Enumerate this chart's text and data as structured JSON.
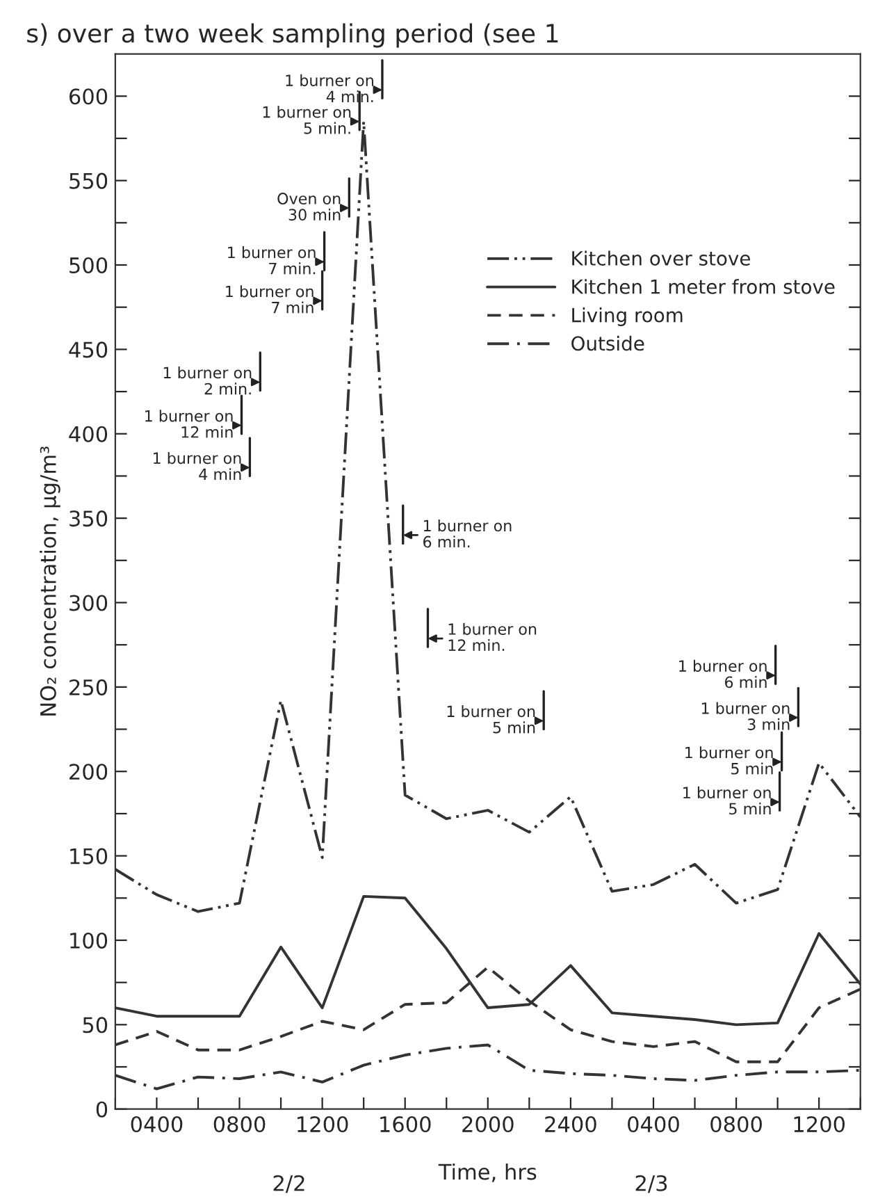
{
  "chart_data": {
    "type": "line",
    "title": "s) over a two week sampling period (see 1",
    "xlabel": "Time, hrs",
    "ylabel": "NO₂ concentration, μg/m³",
    "categories": [
      null,
      "0400",
      null,
      "0800",
      null,
      "1200",
      null,
      "1600",
      null,
      "2000",
      null,
      "2400",
      null,
      "0400",
      null,
      "0800",
      null,
      "1200",
      null
    ],
    "series": [
      {
        "name": "Kitchen over stove",
        "color": "#333333",
        "line_style": "dashdotdot",
        "values": [
          142,
          127,
          117,
          122,
          242,
          149,
          585,
          186,
          172,
          177,
          164,
          185,
          129,
          133,
          145,
          122,
          130,
          205,
          173
        ]
      },
      {
        "name": "Kitchen 1 meter from stove",
        "color": "#333333",
        "line_style": "solid",
        "values": [
          60,
          55,
          55,
          55,
          96,
          60,
          126,
          125,
          95,
          60,
          62,
          85,
          57,
          55,
          53,
          50,
          51,
          104,
          74
        ]
      },
      {
        "name": "Living room",
        "color": "#333333",
        "line_style": "dashed",
        "values": [
          38,
          46,
          35,
          35,
          43,
          52,
          47,
          62,
          63,
          84,
          64,
          47,
          40,
          37,
          40,
          28,
          28,
          60,
          71
        ]
      },
      {
        "name": "Outside",
        "color": "#333333",
        "line_style": "dashdot",
        "values": [
          20,
          12,
          19,
          18,
          22,
          16,
          26,
          32,
          36,
          38,
          23,
          21,
          20,
          18,
          17,
          20,
          22,
          22,
          23
        ]
      }
    ],
    "ylim": [
      0,
      625
    ],
    "yticks": [
      0,
      {
        "value": 25,
        "label": null
      },
      50,
      {
        "value": 75,
        "label": null
      },
      100,
      {
        "value": 125,
        "label": null
      },
      150,
      {
        "value": 175,
        "label": null
      },
      200,
      {
        "value": 225,
        "label": null
      },
      250,
      {
        "value": 275,
        "label": null
      },
      300,
      {
        "value": 325,
        "label": null
      },
      350,
      {
        "value": 375,
        "label": null
      },
      400,
      {
        "value": 425,
        "label": null
      },
      450,
      {
        "value": 475,
        "label": null
      },
      500,
      {
        "value": 525,
        "label": null
      },
      550,
      {
        "value": 575,
        "label": null
      },
      600
    ],
    "legend": "top right",
    "annotations": [
      "1 burner on\n4 min.",
      "1 burner on\n5 min.",
      "Oven on\n30 min",
      "1 burner on\n7 min.",
      "1 burner on\n7 min",
      "1 burner on\n2 min.",
      "1 burner on\n12 min",
      "1 burner on\n4 min",
      "1 burner on\n6 min.",
      "1 burner on\n12 min.",
      "1 burner on\n5 min",
      "1 burner on\n6 min",
      "1 burner on\n3 min",
      "1 burner on\n5 min",
      "1 burner on\n5 min",
      "2/2",
      "2/3"
    ]
  }
}
